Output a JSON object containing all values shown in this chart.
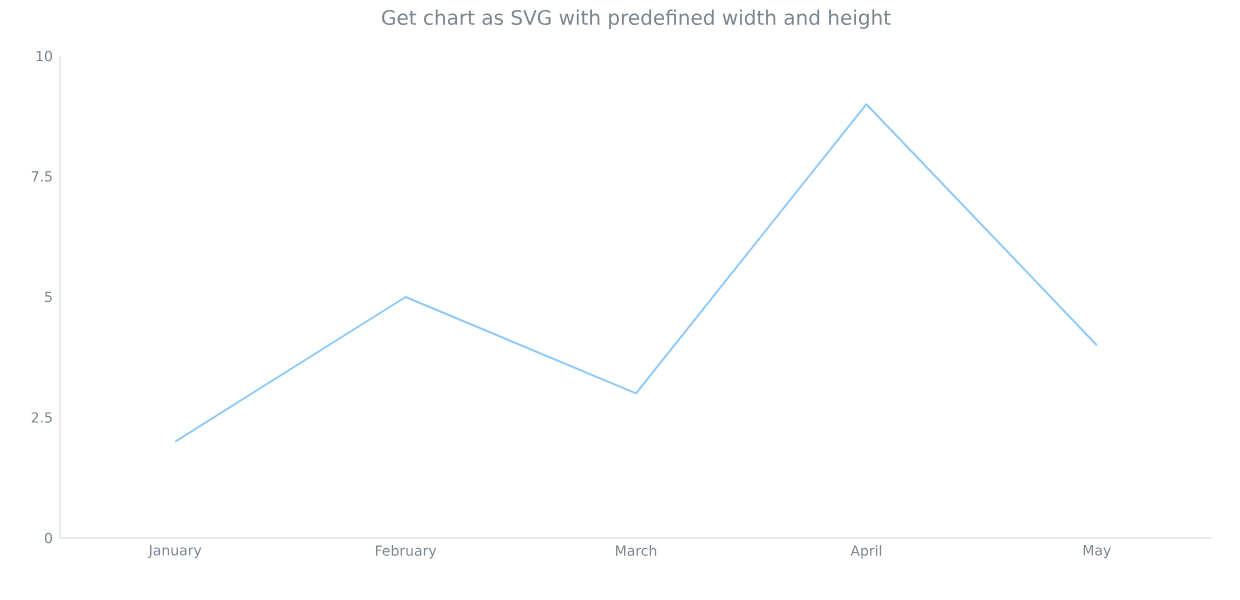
{
  "chart_data": {
    "type": "line",
    "title": "Get chart as SVG with predefined width and height",
    "categories": [
      "January",
      "February",
      "March",
      "April",
      "May"
    ],
    "series": [
      {
        "color": "#90caf9",
        "values": [
          2,
          5,
          3,
          9,
          4
        ]
      }
    ],
    "ylim": [
      0,
      10
    ],
    "yticks": [
      0,
      2.5,
      5,
      7.5,
      10
    ],
    "grid": false,
    "marker": "none",
    "line_style": "solid"
  }
}
